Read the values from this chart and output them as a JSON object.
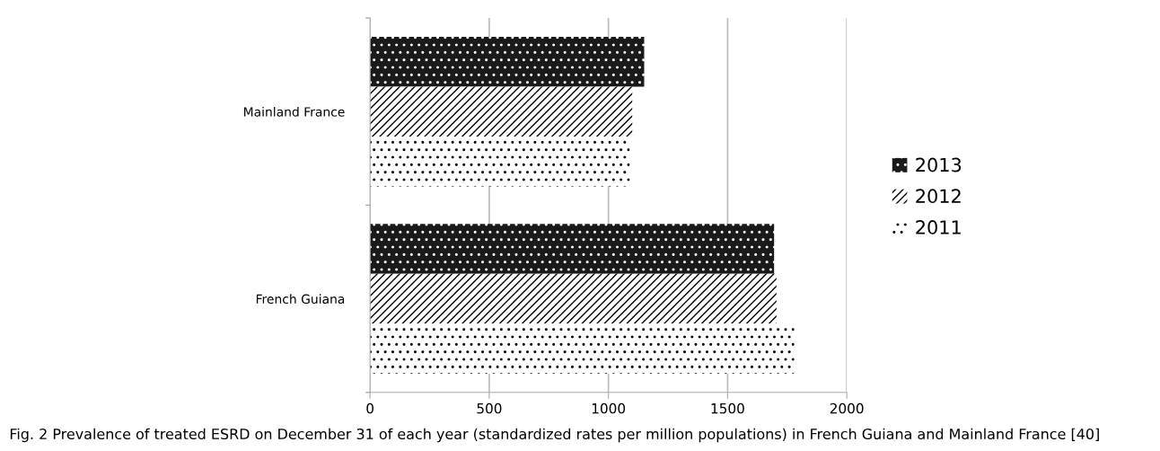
{
  "chart_data": {
    "type": "bar",
    "orientation": "horizontal",
    "categories": [
      "Mainland France",
      "French Guiana"
    ],
    "series": [
      {
        "name": "2013",
        "color": "#1a1a1a",
        "values": [
          1150,
          1695
        ]
      },
      {
        "name": "2012",
        "color": "#ffffff",
        "values": [
          1100,
          1705
        ]
      },
      {
        "name": "2011",
        "color": "#ffffff",
        "values": [
          1090,
          1780
        ]
      }
    ],
    "xlim": [
      0,
      2000
    ],
    "xticks": [
      0,
      500,
      1000,
      1500,
      2000
    ],
    "grid": "x",
    "legend": "right",
    "annotations": [
      "Fig. 2 Prevalence of treated ESRD on December 31 of each year (standardized rates per million populations) in French Guiana and Mainland France [40]"
    ]
  }
}
